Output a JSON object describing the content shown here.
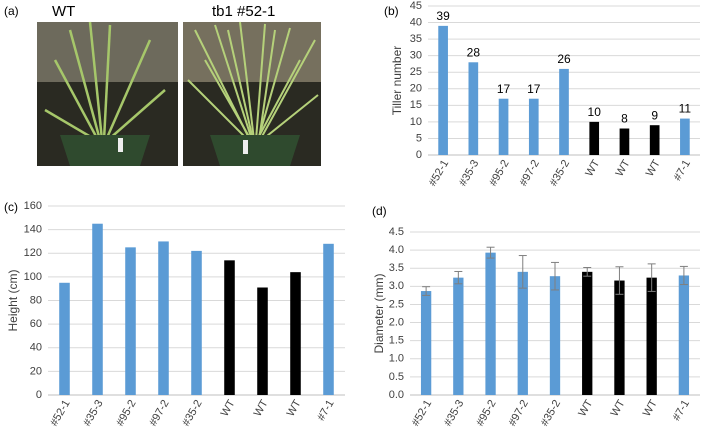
{
  "figure_a": {
    "panel_label": "(a)",
    "photo_labels": [
      "WT",
      "tb1 #52-1"
    ]
  },
  "chart_data": [
    {
      "type": "bar",
      "panel_label": "(b)",
      "y_label": "Tiller number",
      "categories": [
        "#52-1",
        "#35-3",
        "#95-2",
        "#97-2",
        "#35-2",
        "WT",
        "WT",
        "WT",
        "#7-1"
      ],
      "values": [
        39,
        28,
        17,
        17,
        26,
        10,
        8,
        9,
        11
      ],
      "colors": [
        "#5b9bd5",
        "#5b9bd5",
        "#5b9bd5",
        "#5b9bd5",
        "#5b9bd5",
        "#000000",
        "#000000",
        "#000000",
        "#5b9bd5"
      ],
      "show_values": true,
      "ylim": [
        0,
        45
      ],
      "yticks": [
        0,
        5,
        10,
        15,
        20,
        25,
        30,
        35,
        40,
        45
      ],
      "grid": true
    },
    {
      "type": "bar",
      "panel_label": "(c)",
      "y_label": "Height (cm)",
      "categories": [
        "#52-1",
        "#35-3",
        "#95-2",
        "#97-2",
        "#35-2",
        "WT",
        "WT",
        "WT",
        "#7-1"
      ],
      "values": [
        95,
        145,
        125,
        130,
        122,
        114,
        91,
        104,
        128
      ],
      "colors": [
        "#5b9bd5",
        "#5b9bd5",
        "#5b9bd5",
        "#5b9bd5",
        "#5b9bd5",
        "#000000",
        "#000000",
        "#000000",
        "#5b9bd5"
      ],
      "ylim": [
        0,
        160
      ],
      "yticks": [
        0,
        20,
        40,
        60,
        80,
        100,
        120,
        140,
        160
      ],
      "grid": true
    },
    {
      "type": "bar",
      "panel_label": "(d)",
      "y_label": "Diameter (mm)",
      "categories": [
        "#52-1",
        "#35-3",
        "#95-2",
        "#97-2",
        "#35-2",
        "WT",
        "WT",
        "WT",
        "#7-1"
      ],
      "values": [
        2.87,
        3.24,
        3.93,
        3.4,
        3.28,
        3.4,
        3.16,
        3.24,
        3.3
      ],
      "errors": [
        0.12,
        0.17,
        0.15,
        0.45,
        0.38,
        0.12,
        0.38,
        0.38,
        0.25
      ],
      "colors": [
        "#5b9bd5",
        "#5b9bd5",
        "#5b9bd5",
        "#5b9bd5",
        "#5b9bd5",
        "#000000",
        "#000000",
        "#000000",
        "#5b9bd5"
      ],
      "ylim": [
        0,
        4.5
      ],
      "yticks": [
        {
          "value": 0,
          "label": "0.0"
        },
        0.5,
        {
          "value": 1,
          "label": "1.0"
        },
        1.5,
        {
          "value": 2,
          "label": "2.0"
        },
        2.5,
        {
          "value": 3,
          "label": "3.0"
        },
        3.5,
        {
          "value": 4,
          "label": "4.0"
        },
        4.5
      ],
      "grid": true
    }
  ]
}
